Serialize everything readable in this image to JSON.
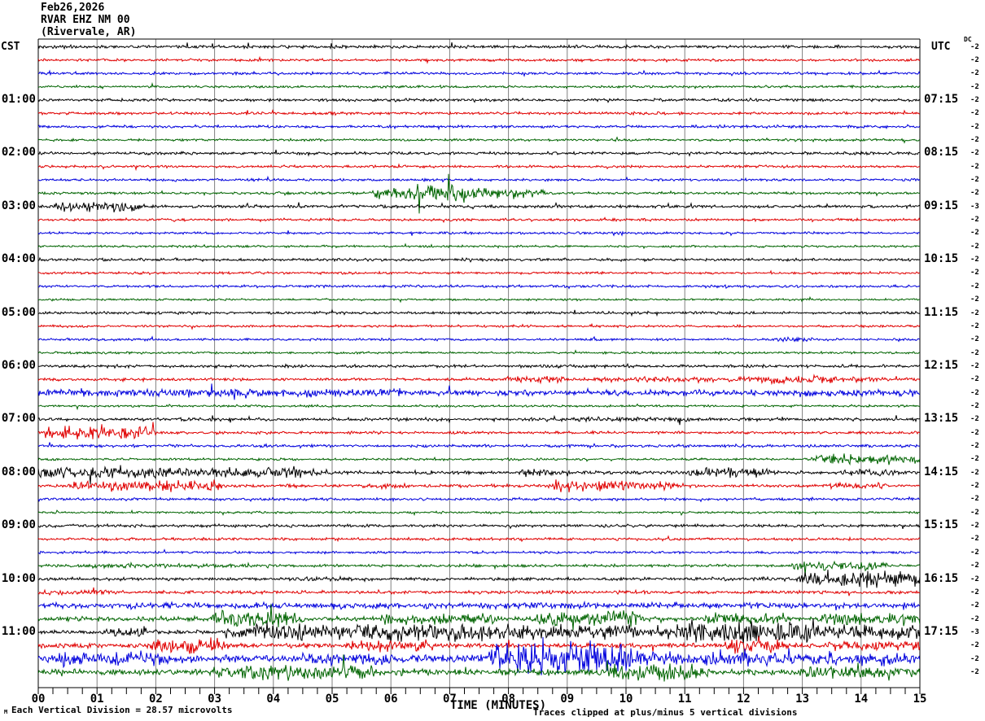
{
  "header": {
    "date": "Feb26,2026",
    "station": "RVAR EHZ NM 00",
    "location": "(Rivervale, AR)"
  },
  "axis": {
    "left_tz": "CST",
    "right_tz": "UTC",
    "dc_header": "DC",
    "xlabel": "TIME (MINUTES)",
    "x_tick_labels": [
      "00",
      "01",
      "02",
      "03",
      "04",
      "05",
      "06",
      "07",
      "08",
      "09",
      "10",
      "11",
      "12",
      "13",
      "14",
      "15"
    ]
  },
  "footer": {
    "corner_glyph": "M",
    "scale_note": "Each Vertical Division =   28.57 microvolts",
    "clip_note": "Traces clipped at plus/minus 5 vertical divisions"
  },
  "colors": {
    "black": "#000000",
    "red": "#e00000",
    "blue": "#0000dd",
    "green": "#006400",
    "grid": "#808080",
    "axis": "#000000"
  },
  "chart_data": {
    "type": "line",
    "x_range_minutes": [
      0,
      15
    ],
    "x_tick_interval_minutes": 1,
    "lines_per_hour": 4,
    "trace_color_cycle": [
      "black",
      "red",
      "blue",
      "green"
    ],
    "clip_divisions": 5,
    "microvolts_per_division": 28.57,
    "rows": [
      {
        "color": "black",
        "cst": "",
        "utc": "",
        "dc": "-2",
        "base_amp": 1.7,
        "events": []
      },
      {
        "color": "red",
        "cst": "",
        "utc": "",
        "dc": "-2",
        "base_amp": 1.4,
        "events": []
      },
      {
        "color": "blue",
        "cst": "",
        "utc": "",
        "dc": "-2",
        "base_amp": 1.5,
        "events": []
      },
      {
        "color": "green",
        "cst": "",
        "utc": "",
        "dc": "-2",
        "base_amp": 1.3,
        "events": []
      },
      {
        "color": "black",
        "cst": "01:00",
        "utc": "07:15",
        "dc": "-2",
        "base_amp": 1.6,
        "events": []
      },
      {
        "color": "red",
        "cst": "",
        "utc": "",
        "dc": "-2",
        "base_amp": 1.5,
        "events": [
          [
            4.5,
            5.1,
            2
          ]
        ]
      },
      {
        "color": "blue",
        "cst": "",
        "utc": "",
        "dc": "-2",
        "base_amp": 1.5,
        "events": []
      },
      {
        "color": "green",
        "cst": "",
        "utc": "",
        "dc": "-2",
        "base_amp": 1.3,
        "events": []
      },
      {
        "color": "black",
        "cst": "02:00",
        "utc": "08:15",
        "dc": "-2",
        "base_amp": 1.6,
        "events": []
      },
      {
        "color": "red",
        "cst": "",
        "utc": "",
        "dc": "-2",
        "base_amp": 1.4,
        "events": []
      },
      {
        "color": "blue",
        "cst": "",
        "utc": "",
        "dc": "-2",
        "base_amp": 1.4,
        "events": []
      },
      {
        "color": "green",
        "cst": "",
        "utc": "",
        "dc": "-2",
        "base_amp": 1.4,
        "events": [
          [
            5.8,
            8.4,
            6
          ],
          [
            6.3,
            7.3,
            10
          ]
        ]
      },
      {
        "color": "black",
        "cst": "03:00",
        "utc": "09:15",
        "dc": "-3",
        "base_amp": 1.7,
        "events": [
          [
            0.4,
            1.6,
            6
          ]
        ]
      },
      {
        "color": "red",
        "cst": "",
        "utc": "",
        "dc": "-2",
        "base_amp": 1.4,
        "events": []
      },
      {
        "color": "blue",
        "cst": "",
        "utc": "",
        "dc": "-2",
        "base_amp": 1.3,
        "events": []
      },
      {
        "color": "green",
        "cst": "",
        "utc": "",
        "dc": "-2",
        "base_amp": 1.2,
        "events": []
      },
      {
        "color": "black",
        "cst": "04:00",
        "utc": "10:15",
        "dc": "-2",
        "base_amp": 1.5,
        "events": []
      },
      {
        "color": "red",
        "cst": "",
        "utc": "",
        "dc": "-2",
        "base_amp": 1.3,
        "events": []
      },
      {
        "color": "blue",
        "cst": "",
        "utc": "",
        "dc": "-2",
        "base_amp": 1.4,
        "events": []
      },
      {
        "color": "green",
        "cst": "",
        "utc": "",
        "dc": "-2",
        "base_amp": 1.1,
        "events": []
      },
      {
        "color": "black",
        "cst": "05:00",
        "utc": "11:15",
        "dc": "-2",
        "base_amp": 1.5,
        "events": []
      },
      {
        "color": "red",
        "cst": "",
        "utc": "",
        "dc": "-2",
        "base_amp": 1.3,
        "events": []
      },
      {
        "color": "blue",
        "cst": "",
        "utc": "",
        "dc": "-2",
        "base_amp": 1.4,
        "events": [
          [
            12.5,
            13.1,
            2.5
          ]
        ]
      },
      {
        "color": "green",
        "cst": "",
        "utc": "",
        "dc": "-2",
        "base_amp": 1.2,
        "events": []
      },
      {
        "color": "black",
        "cst": "06:00",
        "utc": "12:15",
        "dc": "-2",
        "base_amp": 1.6,
        "events": []
      },
      {
        "color": "red",
        "cst": "",
        "utc": "",
        "dc": "-2",
        "base_amp": 1.6,
        "events": [
          [
            8.0,
            8.8,
            4
          ],
          [
            9.5,
            14.3,
            3
          ],
          [
            12.4,
            13.6,
            5
          ]
        ]
      },
      {
        "color": "blue",
        "cst": "",
        "utc": "",
        "dc": "-2",
        "base_amp": 3.3,
        "events": [
          [
            0,
            6.3,
            4.5
          ],
          [
            12.2,
            15,
            4
          ]
        ]
      },
      {
        "color": "green",
        "cst": "",
        "utc": "",
        "dc": "-2",
        "base_amp": 1.2,
        "events": []
      },
      {
        "color": "black",
        "cst": "07:00",
        "utc": "13:15",
        "dc": "-2",
        "base_amp": 1.7,
        "events": [
          [
            8.3,
            11.2,
            2.5
          ]
        ]
      },
      {
        "color": "red",
        "cst": "",
        "utc": "",
        "dc": "-2",
        "base_amp": 1.5,
        "events": [
          [
            0.2,
            1.8,
            7
          ]
        ]
      },
      {
        "color": "blue",
        "cst": "",
        "utc": "",
        "dc": "-2",
        "base_amp": 1.6,
        "events": []
      },
      {
        "color": "green",
        "cst": "",
        "utc": "",
        "dc": "-2",
        "base_amp": 1.3,
        "events": [
          [
            13.3,
            14.9,
            6
          ]
        ]
      },
      {
        "color": "black",
        "cst": "08:00",
        "utc": "14:15",
        "dc": "-2",
        "base_amp": 2.0,
        "events": [
          [
            0,
            4.6,
            6
          ],
          [
            8.3,
            8.7,
            5
          ],
          [
            11.2,
            12.3,
            6
          ],
          [
            13.8,
            14.6,
            4
          ]
        ]
      },
      {
        "color": "red",
        "cst": "",
        "utc": "",
        "dc": "-2",
        "base_amp": 1.7,
        "events": [
          [
            0.7,
            3.0,
            6
          ],
          [
            5.5,
            6.2,
            3
          ],
          [
            8.8,
            10.7,
            6
          ],
          [
            13.5,
            14.3,
            4
          ]
        ]
      },
      {
        "color": "blue",
        "cst": "",
        "utc": "",
        "dc": "-2",
        "base_amp": 1.5,
        "events": []
      },
      {
        "color": "green",
        "cst": "",
        "utc": "",
        "dc": "-2",
        "base_amp": 1.2,
        "events": []
      },
      {
        "color": "black",
        "cst": "09:00",
        "utc": "15:15",
        "dc": "-2",
        "base_amp": 1.6,
        "events": []
      },
      {
        "color": "red",
        "cst": "",
        "utc": "",
        "dc": "-2",
        "base_amp": 1.5,
        "events": []
      },
      {
        "color": "blue",
        "cst": "",
        "utc": "",
        "dc": "-2",
        "base_amp": 1.4,
        "events": []
      },
      {
        "color": "green",
        "cst": "",
        "utc": "",
        "dc": "-2",
        "base_amp": 1.5,
        "events": [
          [
            0.8,
            3.6,
            2.5
          ],
          [
            12.9,
            14.3,
            5
          ]
        ]
      },
      {
        "color": "black",
        "cst": "10:00",
        "utc": "16:15",
        "dc": "-2",
        "base_amp": 1.8,
        "events": [
          [
            4.2,
            5.6,
            2.5
          ],
          [
            13.1,
            15,
            9
          ]
        ]
      },
      {
        "color": "red",
        "cst": "",
        "utc": "",
        "dc": "-2",
        "base_amp": 1.8,
        "events": [
          [
            0,
            1.2,
            3
          ]
        ]
      },
      {
        "color": "blue",
        "cst": "",
        "utc": "",
        "dc": "-2",
        "base_amp": 3.2,
        "events": [
          [
            0,
            1.2,
            3
          ],
          [
            5.2,
            6.6,
            3
          ],
          [
            12.8,
            15,
            3
          ]
        ]
      },
      {
        "color": "green",
        "cst": "",
        "utc": "",
        "dc": "-2",
        "base_amp": 2.4,
        "events": [
          [
            3.1,
            4.3,
            11
          ],
          [
            5.9,
            7.7,
            6
          ],
          [
            8.6,
            10.1,
            9
          ],
          [
            11.4,
            12.6,
            6
          ],
          [
            13.4,
            15,
            7
          ]
        ]
      },
      {
        "color": "black",
        "cst": "11:00",
        "utc": "17:15",
        "dc": "-3",
        "base_amp": 2.2,
        "events": [
          [
            1.2,
            1.9,
            6
          ],
          [
            3.3,
            7.2,
            10
          ],
          [
            7.2,
            10.8,
            8
          ],
          [
            10.8,
            13.2,
            13
          ],
          [
            13.2,
            15,
            8
          ]
        ]
      },
      {
        "color": "red",
        "cst": "",
        "utc": "",
        "dc": "-2",
        "base_amp": 2.8,
        "events": [
          [
            2.0,
            3.1,
            9
          ],
          [
            5.3,
            6.6,
            6
          ],
          [
            11.8,
            12.5,
            10
          ],
          [
            13.5,
            15,
            5
          ]
        ]
      },
      {
        "color": "blue",
        "cst": "",
        "utc": "",
        "dc": "-2",
        "base_amp": 4.2,
        "events": [
          [
            0.3,
            2.2,
            8
          ],
          [
            4.5,
            6.0,
            6
          ],
          [
            7.8,
            10.0,
            20
          ],
          [
            10.0,
            15,
            7
          ]
        ]
      },
      {
        "color": "green",
        "cst": "",
        "utc": "",
        "dc": "-2",
        "base_amp": 3.4,
        "events": [
          [
            3.0,
            5.6,
            9
          ],
          [
            9.8,
            11.2,
            11
          ],
          [
            13.0,
            15,
            6
          ]
        ]
      }
    ]
  }
}
